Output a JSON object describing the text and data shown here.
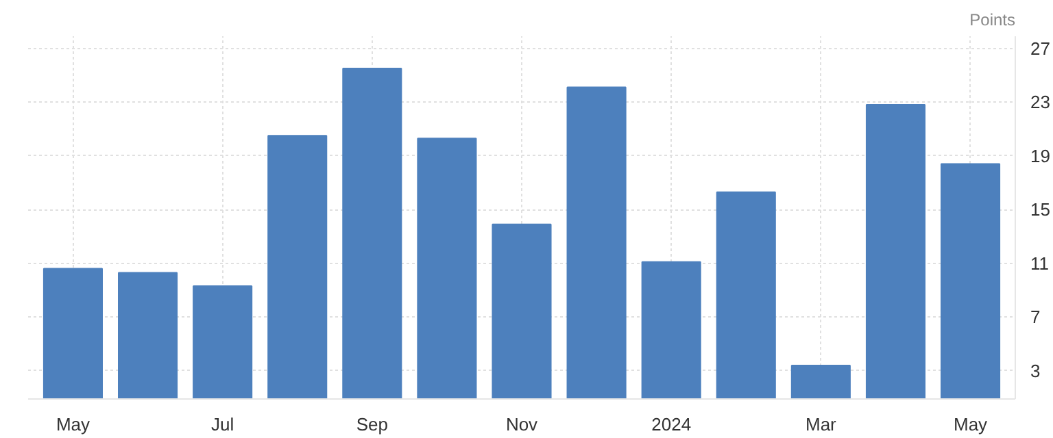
{
  "chart_data": {
    "type": "bar",
    "ylabel": "Points",
    "categories": [
      "May",
      null,
      "Jul",
      null,
      "Sep",
      null,
      "Nov",
      null,
      "2024",
      null,
      "Mar",
      null,
      "May"
    ],
    "values": [
      10.6,
      10.3,
      9.3,
      20.5,
      25.5,
      20.3,
      13.9,
      24.1,
      11.1,
      16.3,
      3.4,
      22.8,
      18.4
    ],
    "color": "#4d80bd",
    "ylim": [
      0.9,
      27.9
    ],
    "yticks": [
      3,
      7,
      11,
      15,
      19,
      23,
      27
    ],
    "grid": true
  }
}
